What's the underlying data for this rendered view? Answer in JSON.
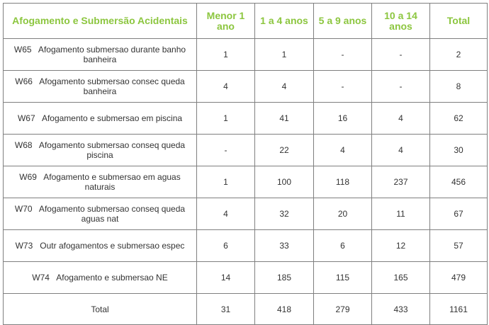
{
  "table": {
    "headers": [
      "Afogamento e Submersão Acidentais",
      "Menor 1 ano",
      "1 a 4 anos",
      "5 a 9 anos",
      "10 a 14 anos",
      "Total"
    ],
    "rows": [
      {
        "label": "W65   Afogamento submersao durante banho banheira",
        "values": [
          "1",
          "1",
          "-",
          "-",
          "2"
        ]
      },
      {
        "label": "W66   Afogamento submersao consec queda banheira",
        "values": [
          "4",
          "4",
          "-",
          "-",
          "8"
        ]
      },
      {
        "label": "W67   Afogamento e submersao em piscina",
        "values": [
          "1",
          "41",
          "16",
          "4",
          "62"
        ]
      },
      {
        "label": "W68   Afogamento submersao conseq queda piscina",
        "values": [
          "-",
          "22",
          "4",
          "4",
          "30"
        ]
      },
      {
        "label": "W69   Afogamento e submersao em aguas naturais",
        "values": [
          "1",
          "100",
          "118",
          "237",
          "456"
        ]
      },
      {
        "label": "W70   Afogamento submersao conseq queda aguas nat",
        "values": [
          "4",
          "32",
          "20",
          "11",
          "67"
        ]
      },
      {
        "label": "W73   Outr afogamentos e submersao espec",
        "values": [
          "6",
          "33",
          "6",
          "12",
          "57"
        ]
      },
      {
        "label": "W74   Afogamento e submersao NE",
        "values": [
          "14",
          "185",
          "115",
          "165",
          "479"
        ]
      },
      {
        "label": "Total",
        "values": [
          "31",
          "418",
          "279",
          "433",
          "1161"
        ]
      }
    ]
  },
  "colors": {
    "header_text": "#8cc63f",
    "body_text": "#333333",
    "border": "#7f7f7f"
  }
}
